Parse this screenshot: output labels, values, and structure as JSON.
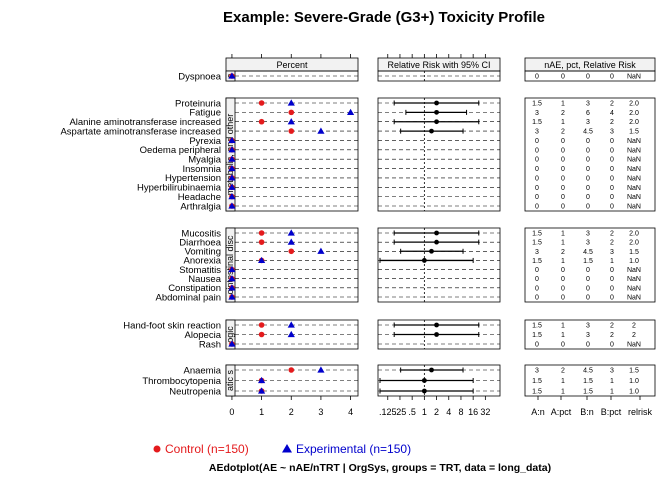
{
  "chart_data": {
    "type": "dotplot",
    "title": "Example: Severe-Grade (G3+) Toxicity Profile",
    "subtitle": "AEdotplot(AE ~ nAE/nTRT | OrgSys, groups = TRT, data = long_data)",
    "panel_headers": {
      "percent": "Percent",
      "relrisk": "Relative Risk with 95% CI",
      "table": "nAE, pct, Relative Risk"
    },
    "percent_ticks": [
      "0",
      "1",
      "2",
      "3",
      "4"
    ],
    "percent_range": [
      -0.2,
      4.25
    ],
    "rr_ticks": [
      ".125",
      ".25",
      ".5",
      "1",
      "2",
      "4",
      "8",
      "16",
      "32"
    ],
    "rr_log2_range": [
      -3.8,
      6.2
    ],
    "table_columns": [
      "A:n",
      "A:pct",
      "B:n",
      "B:pct",
      "relrisk"
    ],
    "colors": {
      "control": "#E41A1C",
      "experimental": "#0000CC"
    },
    "legend": [
      {
        "label": "Control (n=150)",
        "symbol": "circle",
        "color": "#E41A1C"
      },
      {
        "label": "Experimental (n=150)",
        "symbol": "triangle",
        "color": "#0000CC"
      }
    ],
    "groups": [
      {
        "strip": "c",
        "rows": [
          {
            "ae": "Dyspnoea",
            "pctA": 0,
            "pctB": 0,
            "rr": null,
            "lo": null,
            "hi": null,
            "cells": [
              "0",
              "0",
              "0",
              "0",
              "NaN"
            ]
          }
        ]
      },
      {
        "strip": "metabolic, and other",
        "rows": [
          {
            "ae": "Proteinuria",
            "pctA": 1,
            "pctB": 2,
            "rr": 2,
            "lo": 0.18,
            "hi": 22,
            "cells": [
              "1.5",
              "1",
              "3",
              "2",
              "2.0"
            ]
          },
          {
            "ae": "Fatigue",
            "pctA": 2,
            "pctB": 4,
            "rr": 2,
            "lo": 0.35,
            "hi": 11,
            "cells": [
              "3",
              "2",
              "6",
              "4",
              "2.0"
            ]
          },
          {
            "ae": "Alanine aminotransferase increased",
            "pctA": 1,
            "pctB": 2,
            "rr": 2,
            "lo": 0.18,
            "hi": 22,
            "cells": [
              "1.5",
              "1",
              "3",
              "2",
              "2.0"
            ]
          },
          {
            "ae": "Aspartate aminotransferase increased",
            "pctA": 2,
            "pctB": 3,
            "rr": 1.5,
            "lo": 0.26,
            "hi": 9,
            "cells": [
              "3",
              "2",
              "4.5",
              "3",
              "1.5"
            ]
          },
          {
            "ae": "Pyrexia",
            "pctA": 0,
            "pctB": 0,
            "rr": null,
            "lo": null,
            "hi": null,
            "cells": [
              "0",
              "0",
              "0",
              "0",
              "NaN"
            ]
          },
          {
            "ae": "Oedema peripheral",
            "pctA": 0,
            "pctB": 0,
            "rr": null,
            "lo": null,
            "hi": null,
            "cells": [
              "0",
              "0",
              "0",
              "0",
              "NaN"
            ]
          },
          {
            "ae": "Myalgia",
            "pctA": 0,
            "pctB": 0,
            "rr": null,
            "lo": null,
            "hi": null,
            "cells": [
              "0",
              "0",
              "0",
              "0",
              "NaN"
            ]
          },
          {
            "ae": "Insomnia",
            "pctA": 0,
            "pctB": 0,
            "rr": null,
            "lo": null,
            "hi": null,
            "cells": [
              "0",
              "0",
              "0",
              "0",
              "NaN"
            ]
          },
          {
            "ae": "Hypertension",
            "pctA": 0,
            "pctB": 0,
            "rr": null,
            "lo": null,
            "hi": null,
            "cells": [
              "0",
              "0",
              "0",
              "0",
              "NaN"
            ]
          },
          {
            "ae": "Hyperbilirubinaemia",
            "pctA": 0,
            "pctB": 0,
            "rr": null,
            "lo": null,
            "hi": null,
            "cells": [
              "0",
              "0",
              "0",
              "0",
              "NaN"
            ]
          },
          {
            "ae": "Headache",
            "pctA": 0,
            "pctB": 0,
            "rr": null,
            "lo": null,
            "hi": null,
            "cells": [
              "0",
              "0",
              "0",
              "0",
              "NaN"
            ]
          },
          {
            "ae": "Arthralgia",
            "pctA": 0,
            "pctB": 0,
            "rr": null,
            "lo": null,
            "hi": null,
            "cells": [
              "0",
              "0",
              "0",
              "0",
              "NaN"
            ]
          }
        ]
      },
      {
        "strip": "ointestinal disc",
        "rows": [
          {
            "ae": "Mucositis",
            "pctA": 1,
            "pctB": 2,
            "rr": 2,
            "lo": 0.18,
            "hi": 22,
            "cells": [
              "1.5",
              "1",
              "3",
              "2",
              "2.0"
            ]
          },
          {
            "ae": "Diarrhoea",
            "pctA": 1,
            "pctB": 2,
            "rr": 2,
            "lo": 0.18,
            "hi": 22,
            "cells": [
              "1.5",
              "1",
              "3",
              "2",
              "2.0"
            ]
          },
          {
            "ae": "Vomiting",
            "pctA": 2,
            "pctB": 3,
            "rr": 1.5,
            "lo": 0.26,
            "hi": 9,
            "cells": [
              "3",
              "2",
              "4.5",
              "3",
              "1.5"
            ]
          },
          {
            "ae": "Anorexia",
            "pctA": 1,
            "pctB": 1,
            "rr": 1,
            "lo": 0.06,
            "hi": 16,
            "cells": [
              "1.5",
              "1",
              "1.5",
              "1",
              "1.0"
            ]
          },
          {
            "ae": "Stomatitis",
            "pctA": 0,
            "pctB": 0,
            "rr": null,
            "lo": null,
            "hi": null,
            "cells": [
              "0",
              "0",
              "0",
              "0",
              "NaN"
            ]
          },
          {
            "ae": "Nausea",
            "pctA": 0,
            "pctB": 0,
            "rr": null,
            "lo": null,
            "hi": null,
            "cells": [
              "0",
              "0",
              "0",
              "0",
              "NaN"
            ]
          },
          {
            "ae": "Constipation",
            "pctA": 0,
            "pctB": 0,
            "rr": null,
            "lo": null,
            "hi": null,
            "cells": [
              "0",
              "0",
              "0",
              "0",
              "NaN"
            ]
          },
          {
            "ae": "Abdominal pain",
            "pctA": 0,
            "pctB": 0,
            "rr": null,
            "lo": null,
            "hi": null,
            "cells": [
              "0",
              "0",
              "0",
              "0",
              "NaN"
            ]
          }
        ]
      },
      {
        "strip": "ogic",
        "rows": [
          {
            "ae": "Hand-foot skin reaction",
            "pctA": 1,
            "pctB": 2,
            "rr": 2,
            "lo": 0.18,
            "hi": 22,
            "cells": [
              "1.5",
              "1",
              "3",
              "2",
              "2"
            ]
          },
          {
            "ae": "Alopecia",
            "pctA": 1,
            "pctB": 2,
            "rr": 2,
            "lo": 0.18,
            "hi": 22,
            "cells": [
              "1.5",
              "1",
              "3",
              "2",
              "2"
            ]
          },
          {
            "ae": "Rash",
            "pctA": 0,
            "pctB": 0,
            "rr": null,
            "lo": null,
            "hi": null,
            "cells": [
              "0",
              "0",
              "0",
              "0",
              "NaN"
            ]
          }
        ]
      },
      {
        "strip": "atic s",
        "rows": [
          {
            "ae": "Anaemia",
            "pctA": 2,
            "pctB": 3,
            "rr": 1.5,
            "lo": 0.26,
            "hi": 9,
            "cells": [
              "3",
              "2",
              "4.5",
              "3",
              "1.5"
            ]
          },
          {
            "ae": "Thrombocytopenia",
            "pctA": 1,
            "pctB": 1,
            "rr": 1,
            "lo": 0.06,
            "hi": 16,
            "cells": [
              "1.5",
              "1",
              "1.5",
              "1",
              "1.0"
            ]
          },
          {
            "ae": "Neutropenia",
            "pctA": 1,
            "pctB": 1,
            "rr": 1,
            "lo": 0.06,
            "hi": 16,
            "cells": [
              "1.5",
              "1",
              "1.5",
              "1",
              "1.0"
            ]
          }
        ]
      }
    ]
  }
}
